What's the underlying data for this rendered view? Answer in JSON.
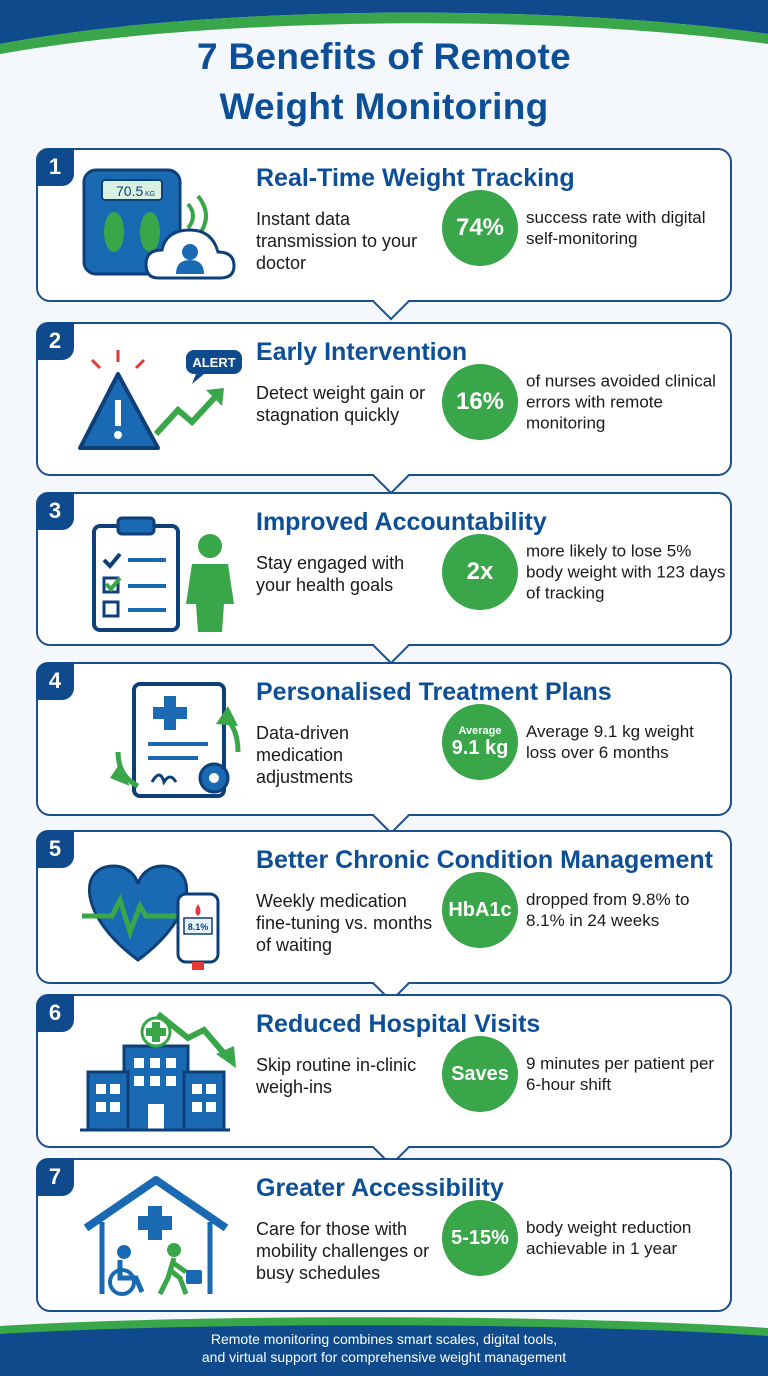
{
  "header": {
    "title_line1": "7 Benefits of Remote",
    "title_line2": "Weight Monitoring"
  },
  "colors": {
    "primary_blue": "#0d4f96",
    "accent_green": "#3aa64a",
    "card_border": "#1a4f8f"
  },
  "cards": [
    {
      "number": "1",
      "title": "Real-Time Weight Tracking",
      "desc": "Instant data transmission to your doctor",
      "stat": "74%",
      "stat_text": "success rate with digital self-monitoring",
      "icon": "smart-scale-icon",
      "scale_reading": "70.5",
      "scale_unit": "KG"
    },
    {
      "number": "2",
      "title": "Early Intervention",
      "desc": "Detect weight gain or stagnation quickly",
      "stat": "16%",
      "stat_text": "of nurses avoided clinical errors with remote monitoring",
      "icon": "alert-warning-icon",
      "alert_label": "ALERT"
    },
    {
      "number": "3",
      "title": "Improved Accountability",
      "desc": "Stay engaged with your health goals",
      "stat": "2x",
      "stat_text": "more likely to lose 5% body weight with 123 days of tracking",
      "icon": "checklist-person-icon"
    },
    {
      "number": "4",
      "title": "Personalised Treatment Plans",
      "desc": "Data-driven medication adjustments",
      "stat_small": "Average",
      "stat": "9.1 kg",
      "stat_text": "Average 9.1 kg weight loss over 6 months",
      "icon": "medical-document-icon"
    },
    {
      "number": "5",
      "title": "Better Chronic Condition Management",
      "desc": "Weekly medication fine-tuning vs. months of waiting",
      "stat": "HbA1c",
      "stat_text": "dropped from 9.8% to 8.1% in 24 weeks",
      "icon": "heart-glucose-icon",
      "meter_reading": "8.1%"
    },
    {
      "number": "6",
      "title": "Reduced Hospital Visits",
      "desc": "Skip routine in-clinic weigh-ins",
      "stat": "Saves",
      "stat_text": "9 minutes per patient per 6-hour shift",
      "icon": "hospital-icon"
    },
    {
      "number": "7",
      "title": "Greater Accessibility",
      "desc": "Care for those with mobility challenges or busy schedules",
      "stat": "5-15%",
      "stat_text": "body weight reduction achievable in 1 year",
      "icon": "home-accessibility-icon"
    }
  ],
  "footer": {
    "line1": "Remote monitoring combines smart scales, digital tools,",
    "line2": "and virtual support for comprehensive weight management"
  }
}
